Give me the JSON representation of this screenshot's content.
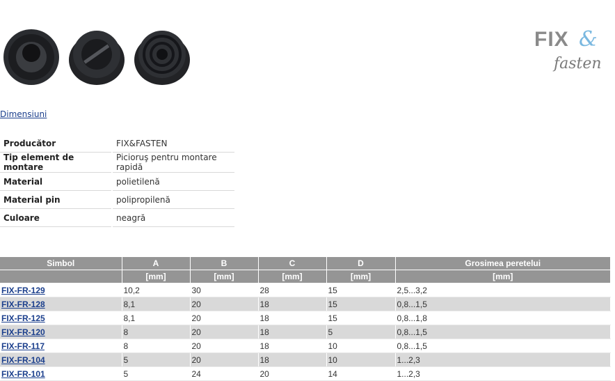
{
  "images": [
    "product-photo-1",
    "product-photo-2",
    "product-photo-3"
  ],
  "logo": {
    "text": "FIX&fasten",
    "part1": "FIX",
    "amp": "&",
    "part2": "fasten"
  },
  "link_dimensions": "Dimensiuni",
  "properties": [
    {
      "label": "Producător",
      "value": "FIX&FASTEN"
    },
    {
      "label": "Tip element de montare",
      "value": "Picioruş pentru montare rapidă"
    },
    {
      "label": "Material",
      "value": "polietilenă"
    },
    {
      "label": "Material pin",
      "value": "polipropilenă"
    },
    {
      "label": "Culoare",
      "value": "neagră"
    }
  ],
  "spec_table": {
    "headers": [
      "Simbol",
      "A",
      "B",
      "C",
      "D",
      "Grosimea peretelui"
    ],
    "units": [
      "",
      "[mm]",
      "[mm]",
      "[mm]",
      "[mm]",
      "[mm]"
    ],
    "rows": [
      [
        "FIX-FR-129",
        "10,2",
        "30",
        "28",
        "15",
        "2,5...3,2"
      ],
      [
        "FIX-FR-128",
        "8,1",
        "20",
        "18",
        "15",
        "0,8...1,5"
      ],
      [
        "FIX-FR-125",
        "8,1",
        "20",
        "18",
        "15",
        "0,8...1,8"
      ],
      [
        "FIX-FR-120",
        "8",
        "20",
        "18",
        "5",
        "0,8...1,5"
      ],
      [
        "FIX-FR-117",
        "8",
        "20",
        "18",
        "10",
        "0,8...1,5"
      ],
      [
        "FIX-FR-104",
        "5",
        "20",
        "18",
        "10",
        "1...2,3"
      ],
      [
        "FIX-FR-101",
        "5",
        "24",
        "20",
        "14",
        "1...2,3"
      ]
    ]
  },
  "colors": {
    "header_bg": "#959595",
    "alt_row": "#d9d9d9",
    "link": "#1a3e8c"
  }
}
